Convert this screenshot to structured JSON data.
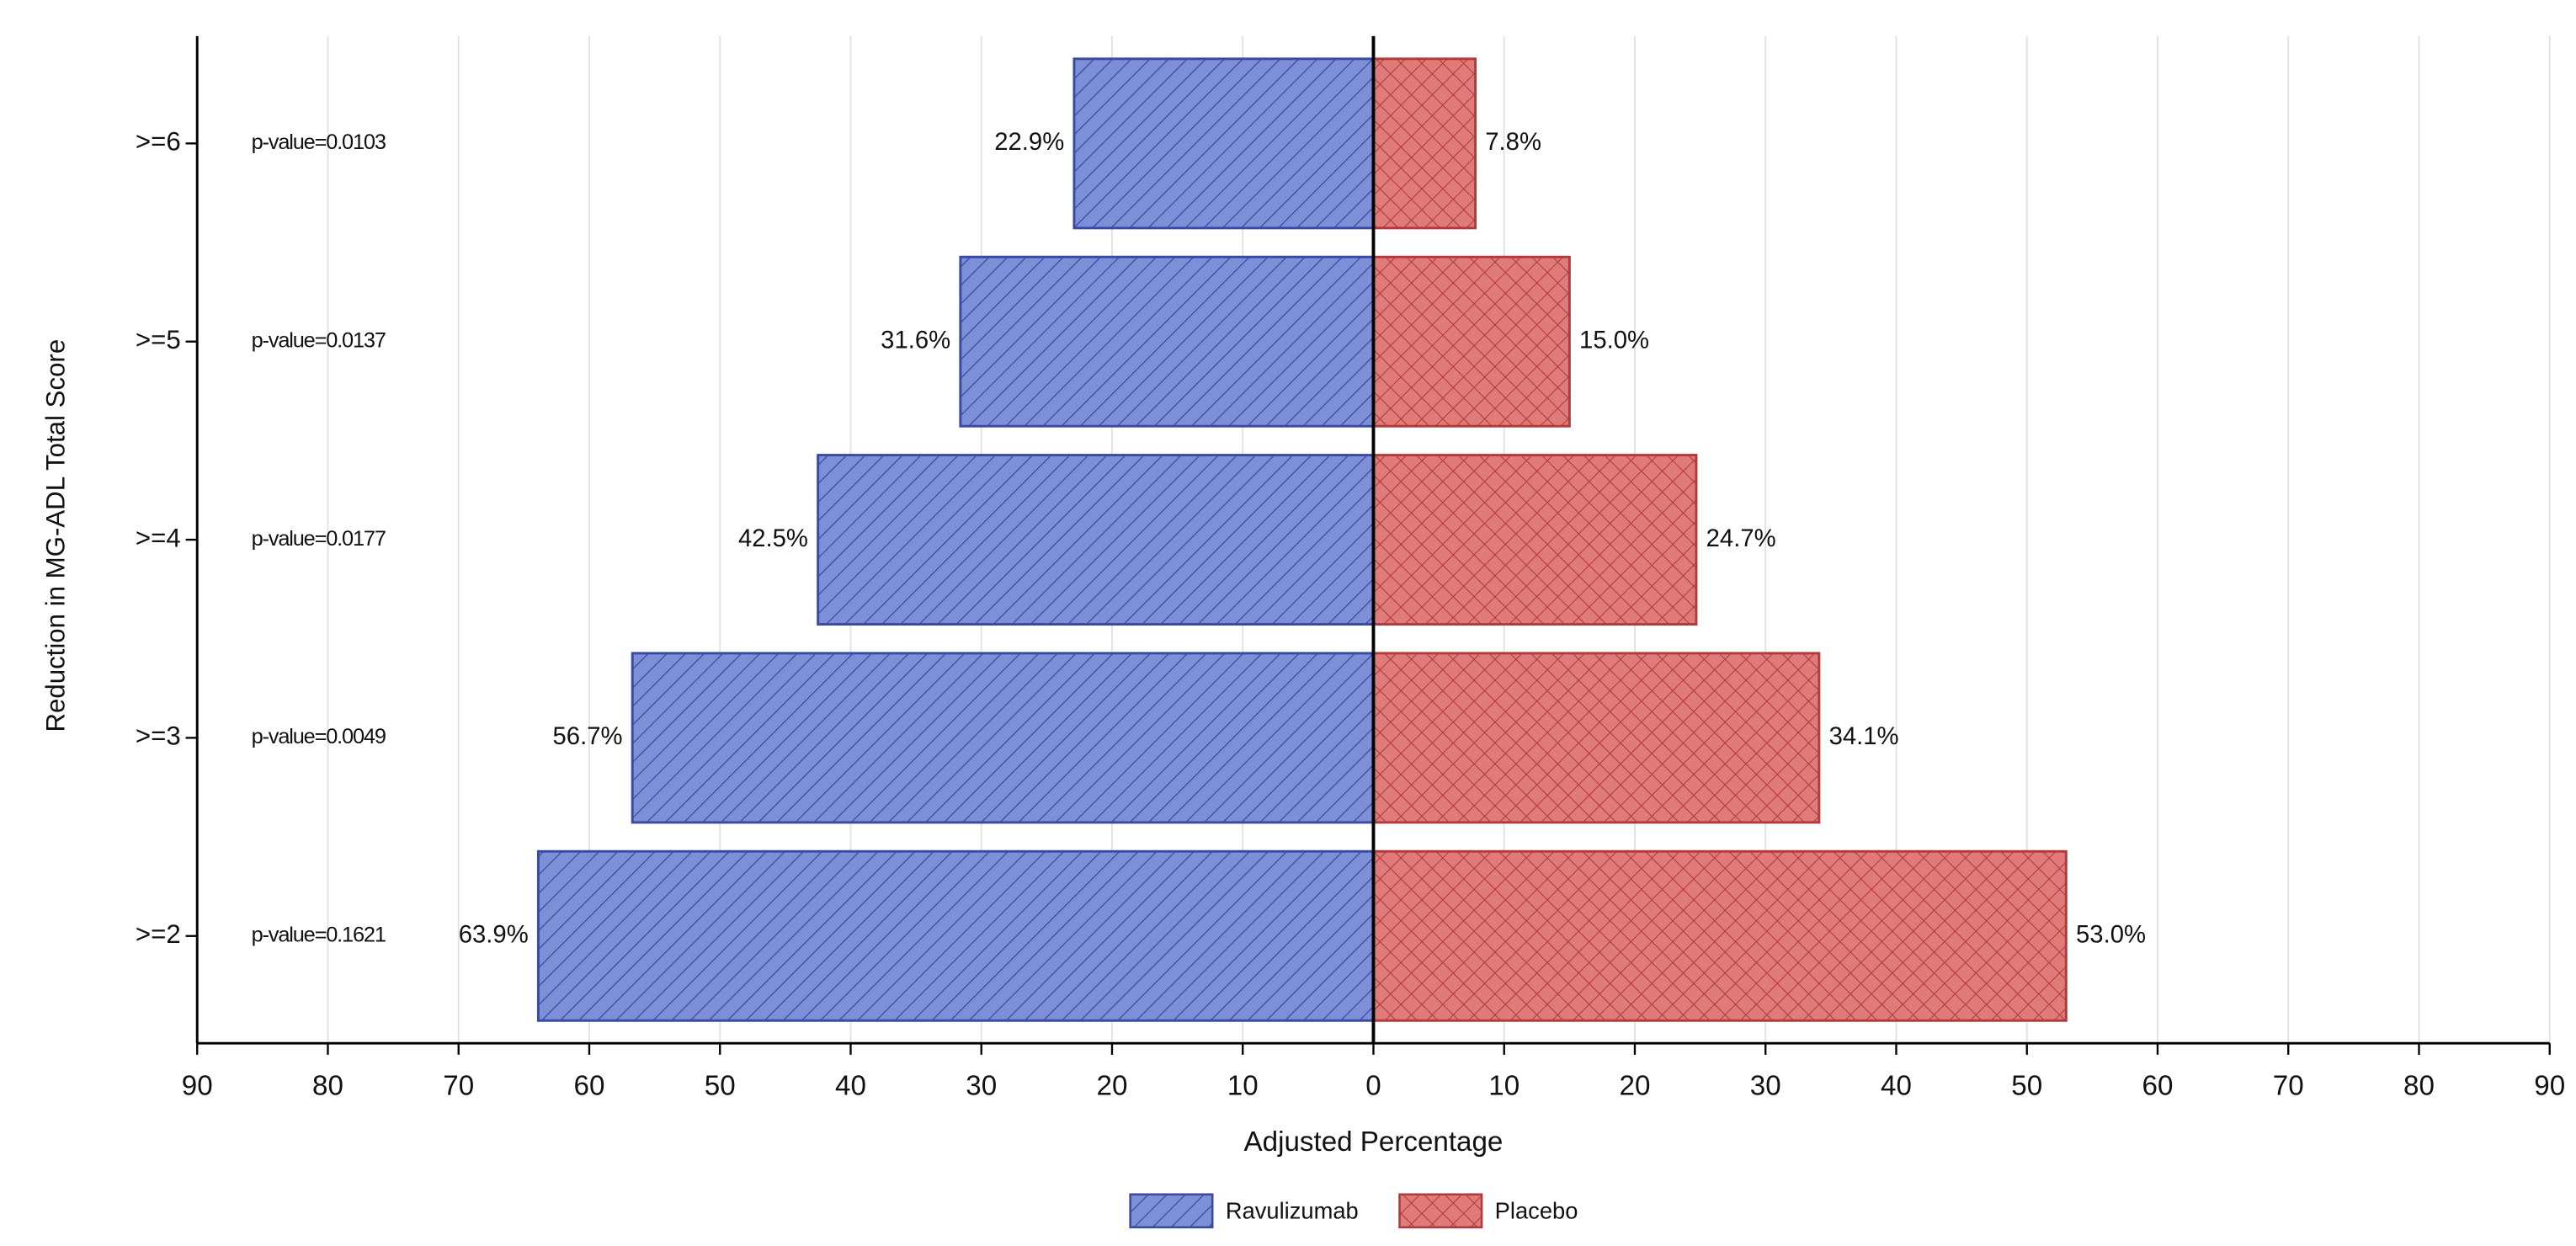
{
  "chart_data": {
    "type": "butterfly-bar",
    "x_label": "Adjusted Percentage",
    "y_label": "Reduction in MG-ADL Total Score",
    "categories": [
      ">=6",
      ">=5",
      ">=4",
      ">=3",
      ">=2"
    ],
    "annotations": [
      "p-value=0.0103",
      "p-value=0.0137",
      "p-value=0.0177",
      "p-value=0.0049",
      "p-value=0.1621"
    ],
    "series": [
      {
        "name": "Ravulizumab",
        "color": "#7d8fd6",
        "side": "left",
        "values": [
          22.9,
          31.6,
          42.5,
          56.7,
          63.9
        ],
        "value_labels": [
          "22.9%",
          "31.6%",
          "42.5%",
          "56.7%",
          "63.9%"
        ]
      },
      {
        "name": "Placebo",
        "color": "#e07b7b",
        "side": "right",
        "values": [
          7.8,
          15.0,
          24.7,
          34.1,
          53.0
        ],
        "value_labels": [
          "7.8%",
          "15.0%",
          "24.7%",
          "34.1%",
          "53.0%"
        ]
      }
    ],
    "xlim": [
      -90,
      90
    ],
    "xticks": [
      {
        "value": -90,
        "label": "90"
      },
      {
        "value": -80,
        "label": "80"
      },
      {
        "value": -70,
        "label": "70"
      },
      {
        "value": -60,
        "label": "60"
      },
      {
        "value": -50,
        "label": "50"
      },
      {
        "value": -40,
        "label": "40"
      },
      {
        "value": -30,
        "label": "30"
      },
      {
        "value": -20,
        "label": "20"
      },
      {
        "value": -10,
        "label": "10"
      },
      0,
      10,
      20,
      30,
      40,
      50,
      60,
      70,
      80,
      90
    ],
    "grid": true,
    "legend": "bottom"
  }
}
